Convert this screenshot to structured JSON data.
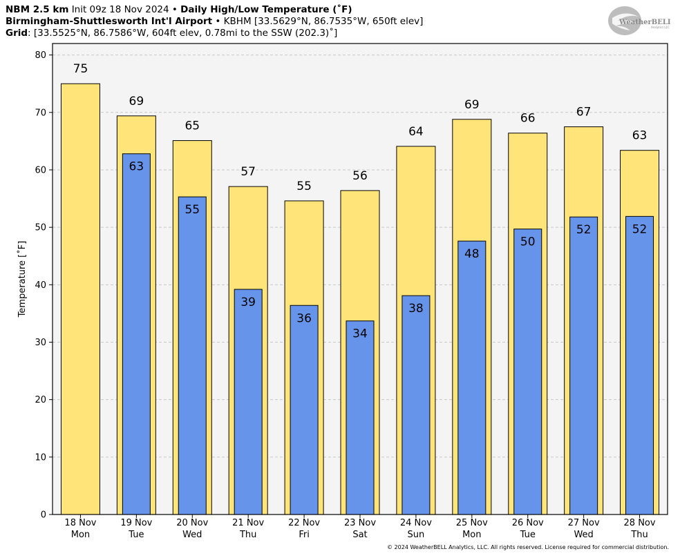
{
  "header": {
    "model": "NBM 2.5 km",
    "init": "Init 09z 18 Nov 2024",
    "sep": "•",
    "product": "Daily High/Low Temperature (˚F)",
    "station": "Birmingham-Shuttlesworth Int'l Airport",
    "station_info": "KBHM [33.5629°N, 86.7535°W, 650ft elev]",
    "grid_label": "Grid",
    "grid_info": ": [33.5525°N, 86.7586°W, 604ft elev, 0.78mi to the SSW (202.3)˚]"
  },
  "logo": {
    "text_line1": "WeatherBELL",
    "text_line2": "Analytics LLC"
  },
  "copyright": "© 2024 WeatherBELL Analytics, LLC. All rights reserved. License required for commercial distribution.",
  "colors": {
    "high": "#ffe47a",
    "low": "#6694ea",
    "plot_bg": "#f4f4f4",
    "grid": "#c8c8c8"
  },
  "chart_data": {
    "type": "bar",
    "ylabel": "Temperature [˚F]",
    "ylim": [
      0,
      82
    ],
    "yticks": [
      0,
      10,
      20,
      30,
      40,
      50,
      60,
      70,
      80
    ],
    "grid": true,
    "categories": [
      {
        "date": "18 Nov",
        "day": "Mon"
      },
      {
        "date": "19 Nov",
        "day": "Tue"
      },
      {
        "date": "20 Nov",
        "day": "Wed"
      },
      {
        "date": "21 Nov",
        "day": "Thu"
      },
      {
        "date": "22 Nov",
        "day": "Fri"
      },
      {
        "date": "23 Nov",
        "day": "Sat"
      },
      {
        "date": "24 Nov",
        "day": "Sun"
      },
      {
        "date": "25 Nov",
        "day": "Mon"
      },
      {
        "date": "26 Nov",
        "day": "Tue"
      },
      {
        "date": "27 Nov",
        "day": "Wed"
      },
      {
        "date": "28 Nov",
        "day": "Thu"
      }
    ],
    "series": [
      {
        "key": "high",
        "values": [
          75,
          69.4,
          65.1,
          57.1,
          54.6,
          56.4,
          64.1,
          68.8,
          66.4,
          67.5,
          63.4
        ],
        "labels": [
          "75",
          "69",
          "65",
          "57",
          "55",
          "56",
          "64",
          "69",
          "66",
          "67",
          "63"
        ]
      },
      {
        "key": "low",
        "values": [
          null,
          62.8,
          55.3,
          39.2,
          36.4,
          33.7,
          38.1,
          47.6,
          49.7,
          51.8,
          51.9
        ],
        "labels": [
          "",
          "63",
          "55",
          "39",
          "36",
          "34",
          "38",
          "48",
          "50",
          "52",
          "52"
        ]
      }
    ]
  }
}
